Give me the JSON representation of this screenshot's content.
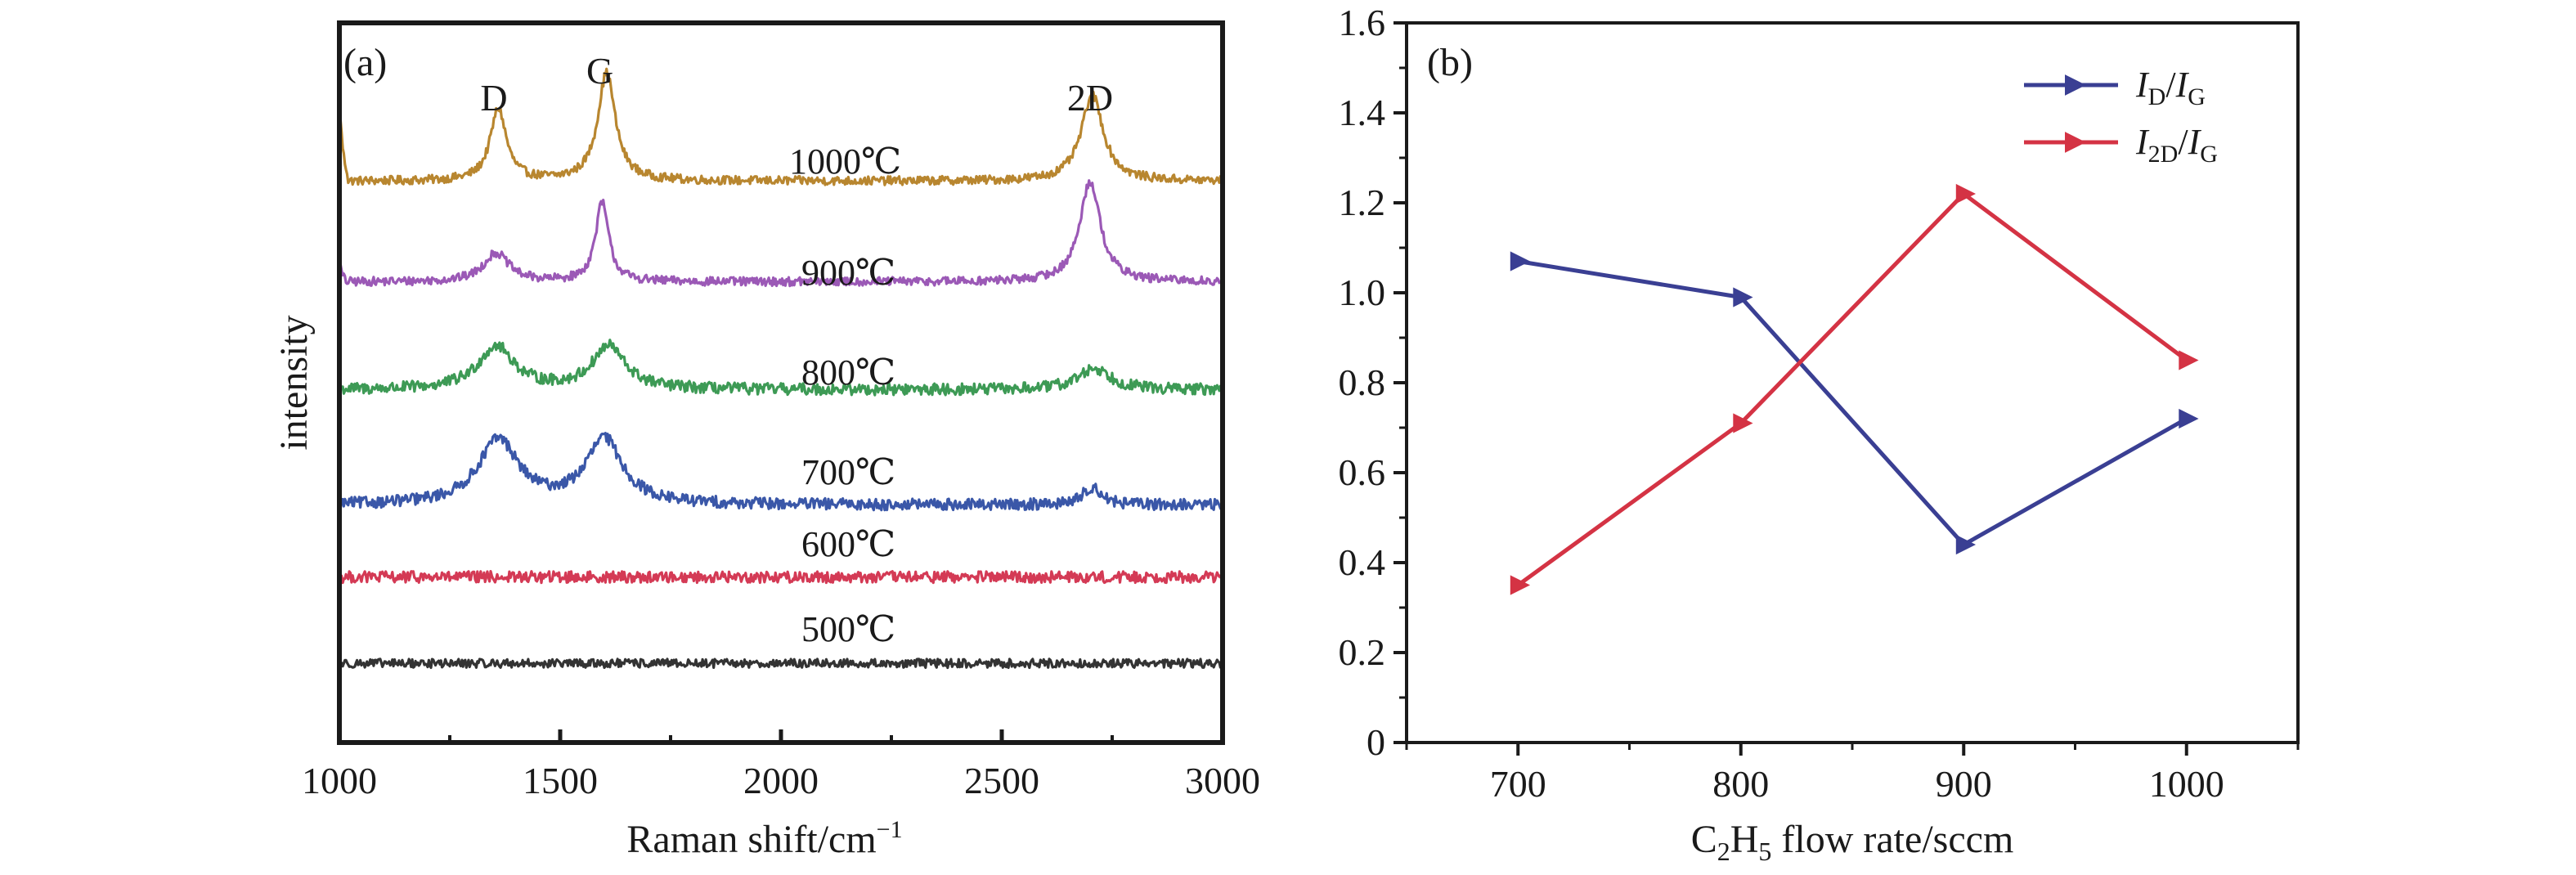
{
  "chart_data": [
    {
      "type": "line",
      "panel_label": "(a)",
      "xlabel": "Raman shift/cm",
      "xlabel_superscript": "−1",
      "ylabel": "intensity",
      "xlim": [
        1000,
        3000
      ],
      "xticks": [
        "1000",
        "1500",
        "2000",
        "2500",
        "3000"
      ],
      "y_ticks_shown": false,
      "peaks": [
        {
          "label": "D",
          "x": 1350
        },
        {
          "label": "G",
          "x": 1590
        },
        {
          "label": "2D",
          "x": 2700
        }
      ],
      "series": [
        {
          "name": "1000℃",
          "color": "#b8862f",
          "baseline": 0.78,
          "peaks": [
            [
              1360,
              0.1,
              22
            ],
            [
              1605,
              0.15,
              24
            ],
            [
              2705,
              0.12,
              30
            ]
          ],
          "noise": 0.006
        },
        {
          "name": "900℃",
          "color": "#9b59b6",
          "baseline": 0.64,
          "peaks": [
            [
              1355,
              0.04,
              35
            ],
            [
              1595,
              0.11,
              18
            ],
            [
              2700,
              0.14,
              28
            ]
          ],
          "noise": 0.006
        },
        {
          "name": "800℃",
          "color": "#3d9a55",
          "baseline": 0.49,
          "peaks": [
            [
              1355,
              0.06,
              50
            ],
            [
              1610,
              0.06,
              45
            ],
            [
              2710,
              0.03,
              45
            ]
          ],
          "noise": 0.008
        },
        {
          "name": "700℃",
          "color": "#3a57a8",
          "baseline": 0.33,
          "peaks": [
            [
              1360,
              0.09,
              55
            ],
            [
              1600,
              0.09,
              50
            ],
            [
              2705,
              0.025,
              25
            ]
          ],
          "noise": 0.008
        },
        {
          "name": "600℃",
          "color": "#d43a55",
          "baseline": 0.23,
          "peaks": [],
          "noise": 0.008
        },
        {
          "name": "500℃",
          "color": "#333333",
          "baseline": 0.11,
          "peaks": [],
          "noise": 0.006
        }
      ]
    },
    {
      "type": "line",
      "panel_label": "(b)",
      "xlabel": "C2H5 flow rate/sccm",
      "xlabel_parts": {
        "c": "C",
        "c_sub": "2",
        "h": "H",
        "h_sub": "5",
        "rest": " flow rate/sccm"
      },
      "ylabel": "",
      "xlim": [
        650,
        1050
      ],
      "ylim": [
        0,
        1.6
      ],
      "xticks": [
        "700",
        "800",
        "900",
        "1000"
      ],
      "yticks": [
        "0",
        "0.2",
        "0.4",
        "0.6",
        "0.8",
        "1.0",
        "1.2",
        "1.4",
        "1.6"
      ],
      "x": [
        700,
        800,
        900,
        1000
      ],
      "legend_position": "top-right",
      "series": [
        {
          "name": "ID/IG",
          "name_parts": {
            "i1": "I",
            "s1": "D",
            "sep": "/",
            "i2": "I",
            "s2": "G"
          },
          "color": "#3a3f93",
          "values": [
            1.07,
            0.99,
            0.44,
            0.72
          ]
        },
        {
          "name": "I2D/IG",
          "name_parts": {
            "i1": "I",
            "s1": "2D",
            "sep": "/",
            "i2": "I",
            "s2": "G"
          },
          "color": "#d43344",
          "values": [
            0.35,
            0.71,
            1.22,
            0.85
          ]
        }
      ]
    }
  ]
}
